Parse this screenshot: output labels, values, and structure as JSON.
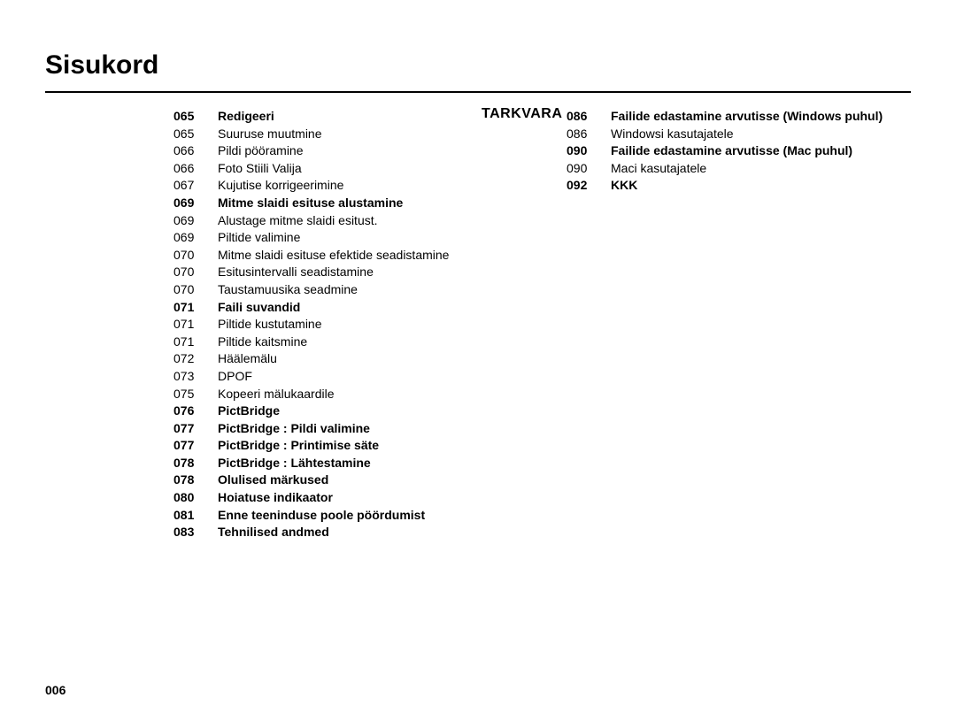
{
  "heading": "Sisukord",
  "sectionLabel": "TARKVARA",
  "pageNumber": "006",
  "columns": {
    "col1": [
      {
        "num": "065",
        "txt": "Redigeeri",
        "bold": true
      },
      {
        "num": "065",
        "txt": "Suuruse muutmine",
        "bold": false
      },
      {
        "num": "066",
        "txt": "Pildi pööramine",
        "bold": false
      },
      {
        "num": "066",
        "txt": "Foto Stiili Valija",
        "bold": false
      },
      {
        "num": "067",
        "txt": "Kujutise korrigeerimine",
        "bold": false
      },
      {
        "num": "069",
        "txt": "Mitme slaidi esituse alustamine",
        "bold": true
      },
      {
        "num": "069",
        "txt": "Alustage mitme slaidi esitust.",
        "bold": false
      },
      {
        "num": "069",
        "txt": "Piltide valimine",
        "bold": false
      },
      {
        "num": "070",
        "txt": "Mitme slaidi esituse efektide seadistamine",
        "bold": false
      },
      {
        "num": "070",
        "txt": "Esitusintervalli seadistamine",
        "bold": false
      },
      {
        "num": "070",
        "txt": "Taustamuusika seadmine",
        "bold": false
      },
      {
        "num": "071",
        "txt": "Faili suvandid",
        "bold": true
      },
      {
        "num": "071",
        "txt": "Piltide kustutamine",
        "bold": false
      },
      {
        "num": "071",
        "txt": "Piltide kaitsmine",
        "bold": false
      },
      {
        "num": "072",
        "txt": "Häälemälu",
        "bold": false
      },
      {
        "num": "073",
        "txt": "DPOF",
        "bold": false
      },
      {
        "num": "075",
        "txt": "Kopeeri mälukaardile",
        "bold": false
      },
      {
        "num": "076",
        "txt": "PictBridge",
        "bold": true
      },
      {
        "num": "077",
        "txt": "PictBridge : Pildi valimine",
        "bold": true
      },
      {
        "num": "077",
        "txt": "PictBridge : Printimise säte",
        "bold": true
      },
      {
        "num": "078",
        "txt": "PictBridge : Lähtestamine",
        "bold": true
      },
      {
        "num": "078",
        "txt": "Olulised märkused",
        "bold": true
      },
      {
        "num": "080",
        "txt": "Hoiatuse indikaator",
        "bold": true
      },
      {
        "num": "081",
        "txt": "Enne teeninduse poole pöördumist",
        "bold": true
      },
      {
        "num": "083",
        "txt": "Tehnilised andmed",
        "bold": true
      }
    ],
    "col2": [
      {
        "num": "086",
        "txt": "Failide edastamine arvutisse (Windows puhul)",
        "bold": true
      },
      {
        "num": "086",
        "txt": "Windowsi kasutajatele",
        "bold": false
      },
      {
        "num": "090",
        "txt": "Failide edastamine arvutisse (Mac puhul)",
        "bold": true
      },
      {
        "num": "090",
        "txt": "Maci kasutajatele",
        "bold": false
      },
      {
        "num": "092",
        "txt": "KKK",
        "bold": true
      }
    ]
  }
}
